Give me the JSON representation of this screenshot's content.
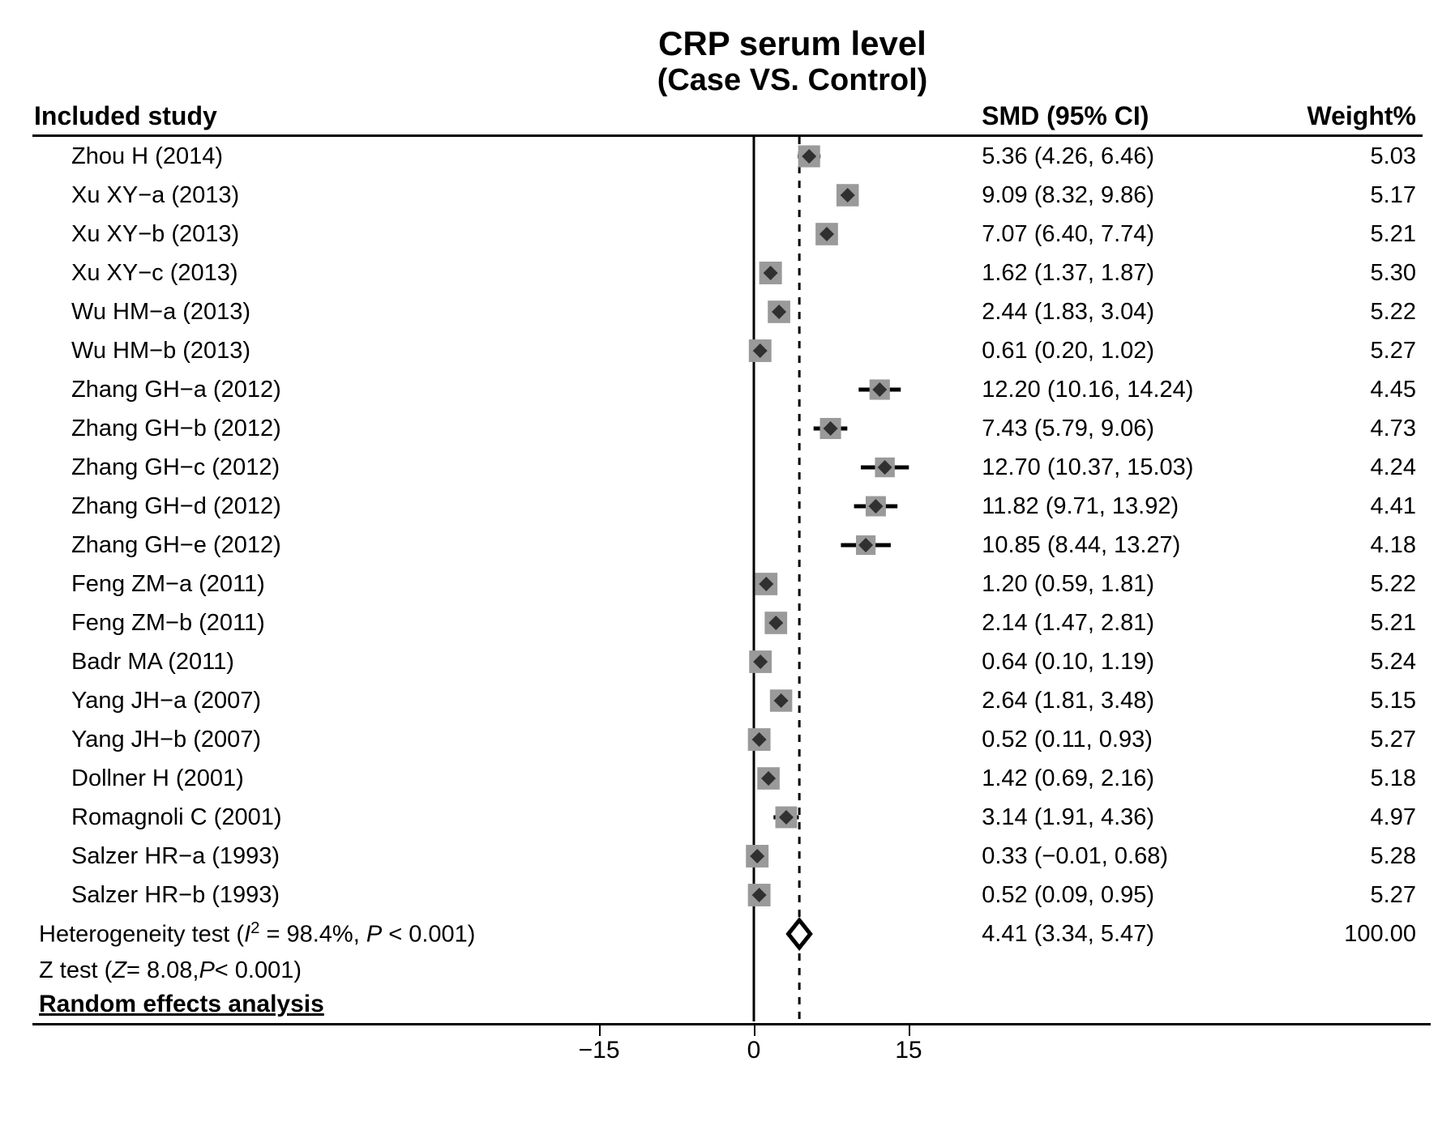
{
  "title": {
    "main": "CRP serum level",
    "sub": "(Case VS. Control)"
  },
  "headers": {
    "study": "Included study",
    "smd": "SMD (95% CI)",
    "weight": "Weight%"
  },
  "plot": {
    "xmin": -22,
    "xmax": 22,
    "ticks": [
      -15,
      0,
      15
    ],
    "zero_x": 0,
    "pooled_x": 4.41,
    "marker_color": "#303030",
    "box_color": "#9a9a9a",
    "line_color": "#000000",
    "dash_color": "#000000"
  },
  "studies": [
    {
      "label": "Zhou H (2014)",
      "est": 5.36,
      "lo": 4.26,
      "hi": 6.46,
      "smd": "5.36 (4.26, 6.46)",
      "weight": "5.03"
    },
    {
      "label": "Xu XY−a (2013)",
      "est": 9.09,
      "lo": 8.32,
      "hi": 9.86,
      "smd": "9.09 (8.32, 9.86)",
      "weight": "5.17"
    },
    {
      "label": "Xu XY−b (2013)",
      "est": 7.07,
      "lo": 6.4,
      "hi": 7.74,
      "smd": "7.07 (6.40, 7.74)",
      "weight": "5.21"
    },
    {
      "label": "Xu XY−c (2013)",
      "est": 1.62,
      "lo": 1.37,
      "hi": 1.87,
      "smd": "1.62 (1.37, 1.87)",
      "weight": "5.30"
    },
    {
      "label": "Wu HM−a (2013)",
      "est": 2.44,
      "lo": 1.83,
      "hi": 3.04,
      "smd": "2.44 (1.83, 3.04)",
      "weight": "5.22"
    },
    {
      "label": "Wu HM−b (2013)",
      "est": 0.61,
      "lo": 0.2,
      "hi": 1.02,
      "smd": "0.61 (0.20, 1.02)",
      "weight": "5.27"
    },
    {
      "label": "Zhang GH−a (2012)",
      "est": 12.2,
      "lo": 10.16,
      "hi": 14.24,
      "smd": "12.20 (10.16, 14.24)",
      "weight": "4.45"
    },
    {
      "label": "Zhang GH−b (2012)",
      "est": 7.43,
      "lo": 5.79,
      "hi": 9.06,
      "smd": "7.43 (5.79, 9.06)",
      "weight": "4.73"
    },
    {
      "label": "Zhang GH−c (2012)",
      "est": 12.7,
      "lo": 10.37,
      "hi": 15.03,
      "smd": "12.70 (10.37, 15.03)",
      "weight": "4.24"
    },
    {
      "label": "Zhang GH−d (2012)",
      "est": 11.82,
      "lo": 9.71,
      "hi": 13.92,
      "smd": "11.82 (9.71, 13.92)",
      "weight": "4.41"
    },
    {
      "label": "Zhang GH−e (2012)",
      "est": 10.85,
      "lo": 8.44,
      "hi": 13.27,
      "smd": "10.85 (8.44, 13.27)",
      "weight": "4.18"
    },
    {
      "label": "Feng ZM−a (2011)",
      "est": 1.2,
      "lo": 0.59,
      "hi": 1.81,
      "smd": "1.20 (0.59, 1.81)",
      "weight": "5.22"
    },
    {
      "label": "Feng ZM−b (2011)",
      "est": 2.14,
      "lo": 1.47,
      "hi": 2.81,
      "smd": "2.14 (1.47, 2.81)",
      "weight": "5.21"
    },
    {
      "label": "Badr MA (2011)",
      "est": 0.64,
      "lo": 0.1,
      "hi": 1.19,
      "smd": "0.64 (0.10, 1.19)",
      "weight": "5.24"
    },
    {
      "label": "Yang JH−a (2007)",
      "est": 2.64,
      "lo": 1.81,
      "hi": 3.48,
      "smd": "2.64 (1.81, 3.48)",
      "weight": "5.15"
    },
    {
      "label": "Yang JH−b (2007)",
      "est": 0.52,
      "lo": 0.11,
      "hi": 0.93,
      "smd": "0.52 (0.11, 0.93)",
      "weight": "5.27"
    },
    {
      "label": "Dollner H (2001)",
      "est": 1.42,
      "lo": 0.69,
      "hi": 2.16,
      "smd": "1.42 (0.69, 2.16)",
      "weight": "5.18"
    },
    {
      "label": "Romagnoli C (2001)",
      "est": 3.14,
      "lo": 1.91,
      "hi": 4.36,
      "smd": "3.14 (1.91, 4.36)",
      "weight": "4.97"
    },
    {
      "label": "Salzer HR−a (1993)",
      "est": 0.33,
      "lo": -0.01,
      "hi": 0.68,
      "smd": "0.33 (−0.01, 0.68)",
      "weight": "5.28"
    },
    {
      "label": "Salzer HR−b (1993)",
      "est": 0.52,
      "lo": 0.09,
      "hi": 0.95,
      "smd": "0.52 (0.09, 0.95)",
      "weight": "5.27"
    }
  ],
  "summary": {
    "het_html": "Heterogeneity test (<span class='ital'>I</span><sup>2</sup> = 98.4%, <span class='ital'>P</span> &lt; 0.001)",
    "smd": "4.41 (3.34, 5.47)",
    "lo": 3.34,
    "hi": 5.47,
    "est": 4.41,
    "weight": "100.00",
    "ztest_html": "Z test (<span class='ital'>Z</span> = 8.08, <span class='ital'>P</span> &lt; 0.001)",
    "analysis": "Random effects analysis"
  }
}
